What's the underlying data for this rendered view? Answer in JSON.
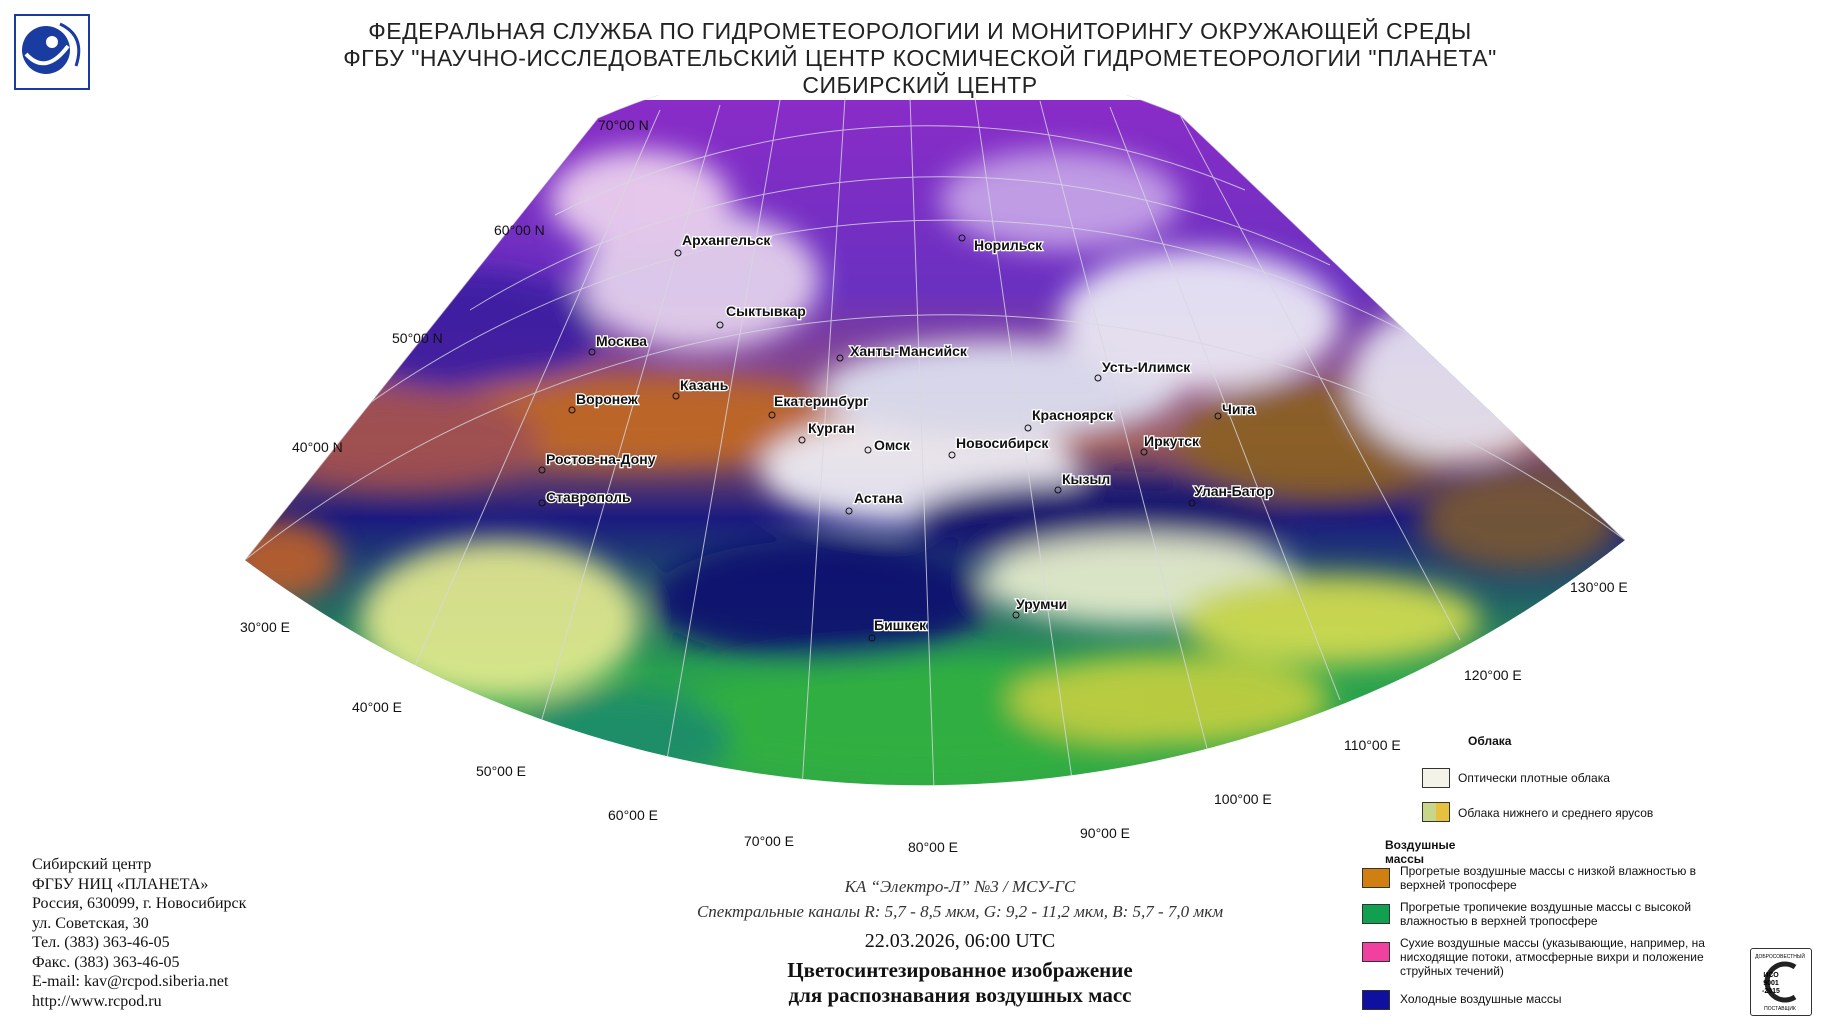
{
  "header": {
    "line1": "ФЕДЕРАЛЬНАЯ СЛУЖБА ПО ГИДРОМЕТЕОРОЛОГИИ И МОНИТОРИНГУ ОКРУЖАЮЩЕЙ СРЕДЫ",
    "line2": "ФГБУ \"НАУЧНО-ИССЛЕДОВАТЕЛЬСКИЙ ЦЕНТР КОСМИЧЕСКОЙ ГИДРОМЕТЕОРОЛОГИИ \"ПЛАНЕТА\"",
    "line3": "СИБИРСКИЙ ЦЕНТР"
  },
  "map": {
    "lat_labels": [
      "70°00 N",
      "60°00 N",
      "50°00 N",
      "40°00 N"
    ],
    "lon_labels": [
      "30°00 E",
      "40°00 E",
      "50°00 E",
      "60°00 E",
      "70°00 E",
      "80°00 E",
      "90°00 E",
      "100°00 E",
      "110°00 E",
      "120°00 E",
      "130°00 E"
    ],
    "cities": [
      "Архангельск",
      "Норильск",
      "Сыктывкар",
      "Москва",
      "Ханты-Мансийск",
      "Усть-Илимск",
      "Казань",
      "Воронеж",
      "Екатеринбург",
      "Красноярск",
      "Чита",
      "Курган",
      "Омск",
      "Новосибирск",
      "Иркутск",
      "Ростов-на-Дону",
      "Кызыл",
      "Улан-Батор",
      "Ставрополь",
      "Астана",
      "Урумчи",
      "Бишкек"
    ]
  },
  "caption": {
    "satellite": "КА “Электро-Л” №3 / МСУ-ГС",
    "channels": "Спектральные каналы R: 5,7 - 8,5 мкм, G: 9,2 - 11,2 мкм, B: 5,7 - 7,0 мкм",
    "datetime": "22.03.2026, 06:00 UTC",
    "title1": "Цветосинтезированное изображение",
    "title2": "для распознавания воздушных масс"
  },
  "contact": {
    "lines": [
      "Сибирский центр",
      "ФГБУ НИЦ «ПЛАНЕТА»",
      "Россия, 630099, г. Новосибирск",
      "ул. Советская, 30",
      "Тел. (383) 363-46-05",
      "Факс. (383) 363-46-05",
      "E-mail: kav@rcpod.siberia.net",
      "http://www.rcpod.ru"
    ]
  },
  "legend": {
    "clouds_title": "Облака",
    "dense_clouds": "Оптически плотные облака",
    "low_mid_clouds": "Облака нижнего и среднего ярусов",
    "air_title": "Воздушные массы",
    "warm_dry": "Прогретые воздушные массы с низкой влажностью в верхней тропосфере",
    "warm_wet": "Прогретые тропичекие воздушные массы с высокой влажностью в верхней тропосфере",
    "dry": "Сухие воздушные массы (указывающие, например, на нисходящие потоки, атмосферные вихри и положение струйных течений)",
    "cold": "Холодные воздушные массы",
    "colors": {
      "dense": "#f3f3e8",
      "low_a": "#c8d68a",
      "low_b": "#e8c040",
      "warm_dry": "#d08010",
      "warm_wet": "#10a050",
      "dry": "#f040a0",
      "cold": "#1010a0"
    }
  },
  "cert": {
    "lines": [
      "ДОБРОСОВЕСТНЫЙ",
      "ИСО",
      "9001",
      "-2015",
      "ПОСТАВЩИК"
    ]
  }
}
